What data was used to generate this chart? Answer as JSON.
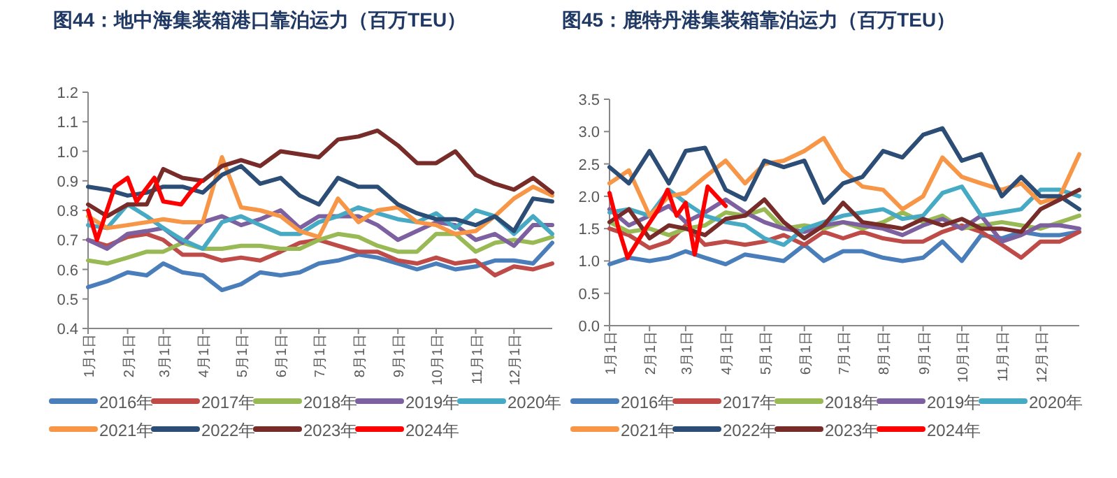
{
  "chart_data": [
    {
      "type": "line",
      "title": "图44：地中海集装箱港口靠泊运力（百万TEU）",
      "legend": "bottom",
      "marker": "none",
      "line_style": "solid",
      "x": [
        "--01-01",
        "--01-16",
        "--02-01",
        "--02-16",
        "--03-01",
        "--03-16",
        "--04-01",
        "--04-16",
        "--05-01",
        "--05-16",
        "--06-01",
        "--06-16",
        "--07-01",
        "--07-16",
        "--08-01",
        "--08-16",
        "--09-01",
        "--09-16",
        "--10-01",
        "--10-16",
        "--11-01",
        "--11-16",
        "--12-01",
        "--12-16",
        "--12-31"
      ],
      "xlim": [
        "--01-01",
        "--12-31"
      ],
      "xticks": [
        {
          "value": "--01-01",
          "label": "1月1日"
        },
        {
          "value": "--02-01",
          "label": "2月1日"
        },
        {
          "value": "--03-01",
          "label": "3月1日"
        },
        {
          "value": "--04-01",
          "label": "4月1日"
        },
        {
          "value": "--05-01",
          "label": "5月1日"
        },
        {
          "value": "--06-01",
          "label": "6月1日"
        },
        {
          "value": "--07-01",
          "label": "7月1日"
        },
        {
          "value": "--08-01",
          "label": "8月1日"
        },
        {
          "value": "--09-01",
          "label": "9月1日"
        },
        {
          "value": "--10-01",
          "label": "10月1日"
        },
        {
          "value": "--11-01",
          "label": "11月1日"
        },
        {
          "value": "--12-01",
          "label": "12月1日"
        }
      ],
      "ylim": [
        0.4,
        1.2
      ],
      "yticks": [
        0.4,
        0.5,
        0.6,
        0.7,
        0.8,
        0.9,
        {
          "value": 1,
          "label": "1.0"
        },
        1.1,
        1.2
      ],
      "series": [
        {
          "name": "2016年",
          "color": "#4a7ebb",
          "values": [
            0.54,
            0.56,
            0.59,
            0.58,
            0.62,
            0.59,
            0.58,
            0.53,
            0.55,
            0.59,
            0.58,
            0.59,
            0.62,
            0.63,
            0.65,
            0.64,
            0.62,
            0.6,
            0.62,
            0.6,
            0.61,
            0.63,
            0.63,
            0.62,
            0.69
          ]
        },
        {
          "name": "2017年",
          "color": "#be4b48",
          "values": [
            0.7,
            0.68,
            0.71,
            0.72,
            0.7,
            0.65,
            0.65,
            0.63,
            0.64,
            0.63,
            0.66,
            0.69,
            0.7,
            0.68,
            0.66,
            0.66,
            0.63,
            0.62,
            0.64,
            0.62,
            0.63,
            0.58,
            0.61,
            0.6,
            0.62
          ]
        },
        {
          "name": "2018年",
          "color": "#98b954",
          "values": [
            0.63,
            0.62,
            0.64,
            0.66,
            0.66,
            0.69,
            0.67,
            0.67,
            0.68,
            0.68,
            0.67,
            0.67,
            0.7,
            0.72,
            0.71,
            0.68,
            0.66,
            0.66,
            0.72,
            0.72,
            0.66,
            0.69,
            0.7,
            0.69,
            0.71
          ]
        },
        {
          "name": "2019年",
          "color": "#7d60a0",
          "values": [
            0.7,
            0.67,
            0.72,
            0.73,
            0.74,
            0.69,
            0.76,
            0.78,
            0.75,
            0.77,
            0.8,
            0.74,
            0.78,
            0.78,
            0.78,
            0.75,
            0.7,
            0.73,
            0.76,
            0.75,
            0.7,
            0.72,
            0.68,
            0.75,
            0.75
          ]
        },
        {
          "name": "2020年",
          "color": "#46aac5",
          "values": [
            0.75,
            0.74,
            0.82,
            0.78,
            0.74,
            0.7,
            0.67,
            0.76,
            0.78,
            0.75,
            0.72,
            0.72,
            0.76,
            0.78,
            0.81,
            0.79,
            0.77,
            0.76,
            0.79,
            0.74,
            0.8,
            0.78,
            0.72,
            0.78,
            0.72
          ]
        },
        {
          "name": "2021年",
          "color": "#f79646",
          "values": [
            0.78,
            0.74,
            0.75,
            0.76,
            0.77,
            0.76,
            0.76,
            0.98,
            0.81,
            0.8,
            0.78,
            0.73,
            0.71,
            0.84,
            0.76,
            0.8,
            0.81,
            0.76,
            0.75,
            0.72,
            0.73,
            0.78,
            0.84,
            0.88,
            0.85
          ]
        },
        {
          "name": "2022年",
          "color": "#2c4d75",
          "values": [
            0.88,
            0.87,
            0.85,
            0.86,
            0.88,
            0.88,
            0.86,
            0.92,
            0.95,
            0.89,
            0.91,
            0.85,
            0.82,
            0.91,
            0.88,
            0.88,
            0.82,
            0.79,
            0.77,
            0.77,
            0.75,
            0.78,
            0.73,
            0.84,
            0.83
          ]
        },
        {
          "name": "2023年",
          "color": "#772c2a",
          "values": [
            0.82,
            0.78,
            0.82,
            0.82,
            0.94,
            0.91,
            0.9,
            0.95,
            0.97,
            0.95,
            1.0,
            0.99,
            0.98,
            1.04,
            1.05,
            1.07,
            1.02,
            0.96,
            0.96,
            1.0,
            0.92,
            0.89,
            0.87,
            0.91,
            0.86
          ]
        },
        {
          "name": "2024年",
          "color": "#ff0000",
          "x": [
            "--01-01",
            "--01-08",
            "--01-22",
            "--02-01",
            "--02-08",
            "--02-22",
            "--03-01",
            "--03-15",
            "--03-22",
            "--03-31"
          ],
          "values": [
            0.8,
            0.7,
            0.88,
            0.91,
            0.83,
            0.91,
            0.83,
            0.82,
            0.86,
            0.9
          ]
        }
      ]
    },
    {
      "type": "line",
      "title": "图45：鹿特丹港集装箱靠泊运力（百万TEU）",
      "legend": "bottom",
      "marker": "none",
      "line_style": "solid",
      "x": [
        "--01-01",
        "--01-16",
        "--02-01",
        "--02-16",
        "--03-01",
        "--03-16",
        "--04-01",
        "--04-16",
        "--05-01",
        "--05-16",
        "--06-01",
        "--06-16",
        "--07-01",
        "--07-16",
        "--08-01",
        "--08-16",
        "--09-01",
        "--09-16",
        "--10-01",
        "--10-16",
        "--11-01",
        "--11-16",
        "--12-01",
        "--12-16",
        "--12-31"
      ],
      "xlim": [
        "--01-01",
        "--12-31"
      ],
      "xticks": [
        {
          "value": "--01-01",
          "label": "1月1日"
        },
        {
          "value": "--02-01",
          "label": "2月1日"
        },
        {
          "value": "--03-01",
          "label": "3月1日"
        },
        {
          "value": "--04-01",
          "label": "4月1日"
        },
        {
          "value": "--05-01",
          "label": "5月1日"
        },
        {
          "value": "--06-01",
          "label": "6月1日"
        },
        {
          "value": "--07-01",
          "label": "7月1日"
        },
        {
          "value": "--08-01",
          "label": "8月1日"
        },
        {
          "value": "--09-01",
          "label": "9月1日"
        },
        {
          "value": "--10-01",
          "label": "10月1日"
        },
        {
          "value": "--11-01",
          "label": "11月1日"
        },
        {
          "value": "--12-01",
          "label": "12月1日"
        }
      ],
      "ylim": [
        0,
        3.5
      ],
      "yticks": [
        {
          "value": 0,
          "label": "0.0"
        },
        0.5,
        {
          "value": 1,
          "label": "1.0"
        },
        1.5,
        {
          "value": 2,
          "label": "2.0"
        },
        2.5,
        {
          "value": 3,
          "label": "3.0"
        },
        3.5
      ],
      "series": [
        {
          "name": "2016年",
          "color": "#4a7ebb",
          "values": [
            0.95,
            1.05,
            1.0,
            1.05,
            1.15,
            1.05,
            0.95,
            1.1,
            1.05,
            1.0,
            1.25,
            1.0,
            1.15,
            1.15,
            1.05,
            1.0,
            1.05,
            1.3,
            1.0,
            1.4,
            1.35,
            1.45,
            1.4,
            1.4,
            1.45
          ]
        },
        {
          "name": "2017年",
          "color": "#be4b48",
          "values": [
            1.5,
            1.4,
            1.2,
            1.3,
            1.55,
            1.25,
            1.3,
            1.25,
            1.3,
            1.4,
            1.25,
            1.45,
            1.35,
            1.45,
            1.35,
            1.3,
            1.3,
            1.45,
            1.55,
            1.45,
            1.25,
            1.05,
            1.3,
            1.3,
            1.45
          ]
        },
        {
          "name": "2018年",
          "color": "#98b954",
          "values": [
            1.6,
            1.45,
            1.5,
            1.4,
            1.5,
            1.55,
            1.75,
            1.7,
            1.8,
            1.5,
            1.55,
            1.5,
            1.6,
            1.5,
            1.6,
            1.75,
            1.6,
            1.7,
            1.5,
            1.55,
            1.6,
            1.55,
            1.5,
            1.6,
            1.7
          ]
        },
        {
          "name": "2019年",
          "color": "#7d60a0",
          "values": [
            1.8,
            1.55,
            1.7,
            1.85,
            1.6,
            1.75,
            1.95,
            1.75,
            1.6,
            1.5,
            1.45,
            1.55,
            1.6,
            1.55,
            1.5,
            1.4,
            1.55,
            1.65,
            1.5,
            1.7,
            1.3,
            1.4,
            1.55,
            1.55,
            1.5
          ]
        },
        {
          "name": "2020年",
          "color": "#46aac5",
          "values": [
            1.75,
            1.8,
            1.7,
            2.1,
            1.9,
            1.7,
            1.6,
            1.55,
            1.35,
            1.25,
            1.5,
            1.6,
            1.7,
            1.75,
            1.8,
            1.65,
            1.7,
            2.05,
            2.15,
            1.7,
            1.75,
            1.8,
            2.1,
            2.1,
            2.0
          ]
        },
        {
          "name": "2021年",
          "color": "#f79646",
          "values": [
            2.2,
            2.4,
            1.7,
            2.0,
            2.05,
            2.3,
            2.55,
            2.2,
            2.5,
            2.55,
            2.7,
            2.9,
            2.4,
            2.15,
            2.1,
            1.8,
            2.0,
            2.6,
            2.3,
            2.2,
            2.1,
            2.2,
            1.9,
            2.0,
            2.65
          ]
        },
        {
          "name": "2022年",
          "color": "#2c4d75",
          "values": [
            2.45,
            2.2,
            2.7,
            2.2,
            2.7,
            2.75,
            2.1,
            1.95,
            2.55,
            2.45,
            2.55,
            1.9,
            2.2,
            2.3,
            2.7,
            2.6,
            2.95,
            3.05,
            2.55,
            2.65,
            2.0,
            2.3,
            2.0,
            2.0,
            1.8
          ]
        },
        {
          "name": "2023年",
          "color": "#772c2a",
          "values": [
            1.6,
            1.8,
            1.35,
            1.55,
            1.5,
            1.4,
            1.65,
            1.7,
            1.95,
            1.6,
            1.35,
            1.55,
            1.9,
            1.6,
            1.55,
            1.5,
            1.65,
            1.55,
            1.65,
            1.5,
            1.5,
            1.45,
            1.8,
            1.95,
            2.1
          ]
        },
        {
          "name": "2024年",
          "color": "#ff0000",
          "x": [
            "--01-01",
            "--01-08",
            "--01-15",
            "--01-29",
            "--02-08",
            "--02-15",
            "--02-22",
            "--03-01",
            "--03-08",
            "--03-18",
            "--03-25",
            "--04-01"
          ],
          "values": [
            2.05,
            1.5,
            1.05,
            1.5,
            1.8,
            2.1,
            1.7,
            1.9,
            1.1,
            2.15,
            2.0,
            1.85
          ]
        }
      ]
    }
  ]
}
